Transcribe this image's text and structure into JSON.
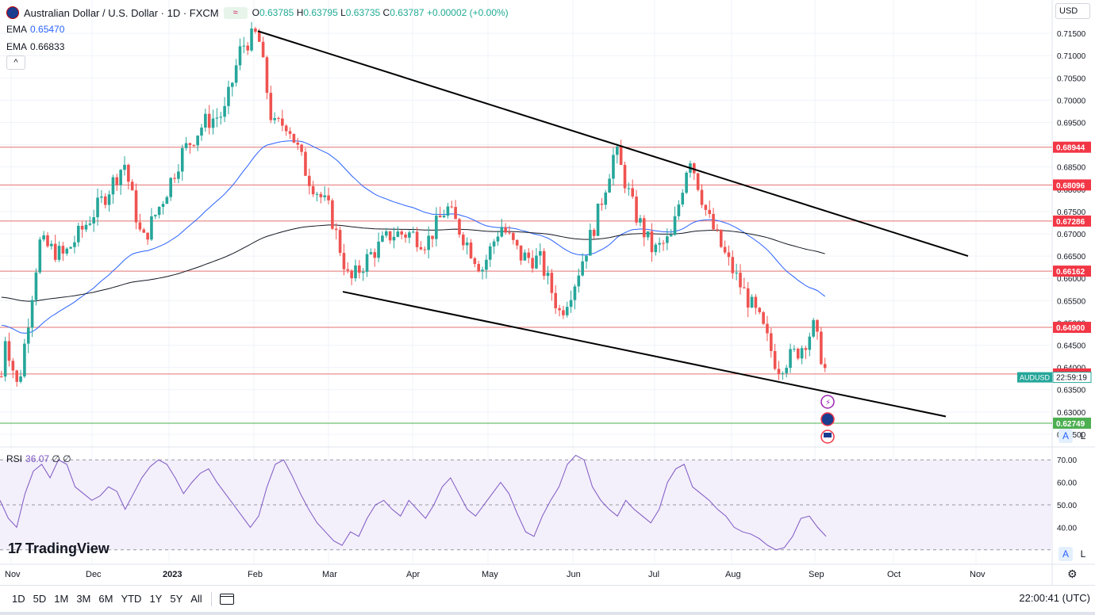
{
  "header": {
    "symbol_title": "Australian Dollar / U.S. Dollar · 1D · FXCM",
    "badge": "≈",
    "o_label": "O",
    "o": "0.63785",
    "h_label": "H",
    "h": "0.63795",
    "l_label": "L",
    "l": "0.63735",
    "c_label": "C",
    "c": "0.63787",
    "change": "+0.00002 (+0.00%)"
  },
  "ema": [
    {
      "label": "EMA",
      "value": "0.65470",
      "color": "#2962ff"
    },
    {
      "label": "EMA",
      "value": "0.66833",
      "color": "#131722"
    }
  ],
  "collapse_label": "^",
  "currency": "USD",
  "rsi": {
    "label": "RSI",
    "value": "36.07",
    "extra": "∅ ∅",
    "color": "#7e57c2"
  },
  "brand": {
    "logo": "17",
    "name": "TradingView"
  },
  "scale_buttons": {
    "auto": "A",
    "log": "L"
  },
  "ranges": [
    "1D",
    "5D",
    "1M",
    "3M",
    "6M",
    "YTD",
    "1Y",
    "5Y",
    "All"
  ],
  "clock": "22:00:41 (UTC)",
  "gear_icon": "⚙",
  "colors": {
    "up": "#26a69a",
    "down": "#ef5350",
    "level": "#e57373",
    "support": "#4caf50",
    "rsi": "#7e57c2",
    "rsi_band": "#f3effb"
  },
  "chart_data": [
    {
      "type": "candlestick",
      "title": "Australian Dollar / U.S. Dollar · 1D · FXCM",
      "ylim": [
        0.6225,
        0.7175
      ],
      "y_ticks": [
        "0.71500",
        "0.71000",
        "0.70500",
        "0.70000",
        "0.69500",
        "0.69000",
        "0.68500",
        "0.68000",
        "0.67500",
        "0.67000",
        "0.66500",
        "0.66000",
        "0.65500",
        "0.65000",
        "0.64500",
        "0.64000",
        "0.63500",
        "0.63000",
        "0.62500"
      ],
      "x_ticks": [
        "Nov",
        "Dec",
        "2023",
        "Feb",
        "Mar",
        "Apr",
        "May",
        "Jun",
        "Jul",
        "Aug",
        "Sep",
        "Oct",
        "Nov"
      ],
      "price_lines": [
        {
          "label": "0.68944",
          "value": 0.68944,
          "color": "#e57373"
        },
        {
          "label": "0.68096",
          "value": 0.68096,
          "color": "#e57373"
        },
        {
          "label": "0.67286",
          "value": 0.67286,
          "color": "#e57373"
        },
        {
          "label": "0.66162",
          "value": 0.66162,
          "color": "#e57373"
        },
        {
          "label": "0.64900",
          "value": 0.649,
          "color": "#e57373"
        },
        {
          "label": "0.63854",
          "value": 0.63854,
          "color": "#e57373"
        },
        {
          "label": "0.62749",
          "value": 0.62749,
          "color": "#4caf50"
        }
      ],
      "last_price": {
        "symbol": "AUDUSD",
        "countdown": "22:59:19",
        "value": 0.63787
      },
      "trend_lines": [
        {
          "from": [
            "Feb",
            0.7155
          ],
          "to": [
            "Oct",
            0.665
          ]
        },
        {
          "from": [
            "Mar",
            0.657
          ],
          "to": [
            "Oct",
            0.629
          ]
        }
      ],
      "candles_anchor": [
        [
          "Oct 28",
          0.648
        ],
        [
          "Nov 3",
          0.635
        ],
        [
          "Nov 11",
          0.668
        ],
        [
          "Nov 20",
          0.665
        ],
        [
          "Nov 28",
          0.672
        ],
        [
          "Dec 5",
          0.678
        ],
        [
          "Dec 13",
          0.686
        ],
        [
          "Dec 20",
          0.668
        ],
        [
          "Dec 29",
          0.679
        ],
        [
          "Jan 5",
          0.688
        ],
        [
          "Jan 13",
          0.695
        ],
        [
          "Jan 20",
          0.697
        ],
        [
          "Jan 26",
          0.712
        ],
        [
          "Feb 2",
          0.715
        ],
        [
          "Feb 8",
          0.694
        ],
        [
          "Feb 14",
          0.695
        ],
        [
          "Feb 22",
          0.683
        ],
        [
          "Mar 1",
          0.675
        ],
        [
          "Mar 8",
          0.659
        ],
        [
          "Mar 15",
          0.665
        ],
        [
          "Mar 23",
          0.67
        ],
        [
          "Mar 30",
          0.67
        ],
        [
          "Apr 6",
          0.668
        ],
        [
          "Apr 14",
          0.676
        ],
        [
          "Apr 21",
          0.669
        ],
        [
          "Apr 28",
          0.662
        ],
        [
          "May 5",
          0.672
        ],
        [
          "May 12",
          0.665
        ],
        [
          "May 19",
          0.664
        ],
        [
          "May 26",
          0.652
        ],
        [
          "Jun 1",
          0.659
        ],
        [
          "Jun 9",
          0.673
        ],
        [
          "Jun 16",
          0.689
        ],
        [
          "Jun 23",
          0.675
        ],
        [
          "Jun 30",
          0.666
        ],
        [
          "Jul 7",
          0.669
        ],
        [
          "Jul 14",
          0.688
        ],
        [
          "Jul 21",
          0.674
        ],
        [
          "Jul 28",
          0.665
        ],
        [
          "Aug 4",
          0.658
        ],
        [
          "Aug 11",
          0.65
        ],
        [
          "Aug 17",
          0.64
        ],
        [
          "Aug 25",
          0.644
        ],
        [
          "Aug 30",
          0.649
        ],
        [
          "Sep 5",
          0.638
        ]
      ],
      "ema_series": [
        {
          "name": "EMA",
          "value": "0.65470",
          "color": "#2962ff"
        },
        {
          "name": "EMA",
          "value": "0.66833",
          "color": "#131722"
        }
      ]
    },
    {
      "type": "line",
      "title": "RSI",
      "ylim": [
        25,
        75
      ],
      "y_ticks": [
        "70.00",
        "60.00",
        "50.00",
        "40.00"
      ],
      "levels": [
        30,
        50,
        70
      ],
      "series": [
        {
          "name": "RSI",
          "last": 36.07,
          "values": [
            52,
            44,
            40,
            55,
            65,
            68,
            62,
            70,
            68,
            58,
            55,
            52,
            54,
            58,
            56,
            48,
            55,
            62,
            67,
            70,
            68,
            62,
            55,
            60,
            64,
            66,
            60,
            55,
            50,
            45,
            40,
            45,
            58,
            68,
            70,
            63,
            55,
            48,
            42,
            38,
            34,
            32,
            38,
            36,
            44,
            50,
            52,
            48,
            45,
            52,
            48,
            44,
            50,
            58,
            62,
            55,
            48,
            45,
            50,
            55,
            60,
            55,
            46,
            38,
            36,
            45,
            52,
            58,
            68,
            72,
            70,
            58,
            52,
            48,
            45,
            52,
            48,
            45,
            42,
            48,
            60,
            66,
            68,
            58,
            55,
            52,
            48,
            45,
            40,
            38,
            37,
            35,
            32,
            30,
            31,
            36,
            44,
            45,
            40,
            36
          ]
        }
      ]
    }
  ]
}
